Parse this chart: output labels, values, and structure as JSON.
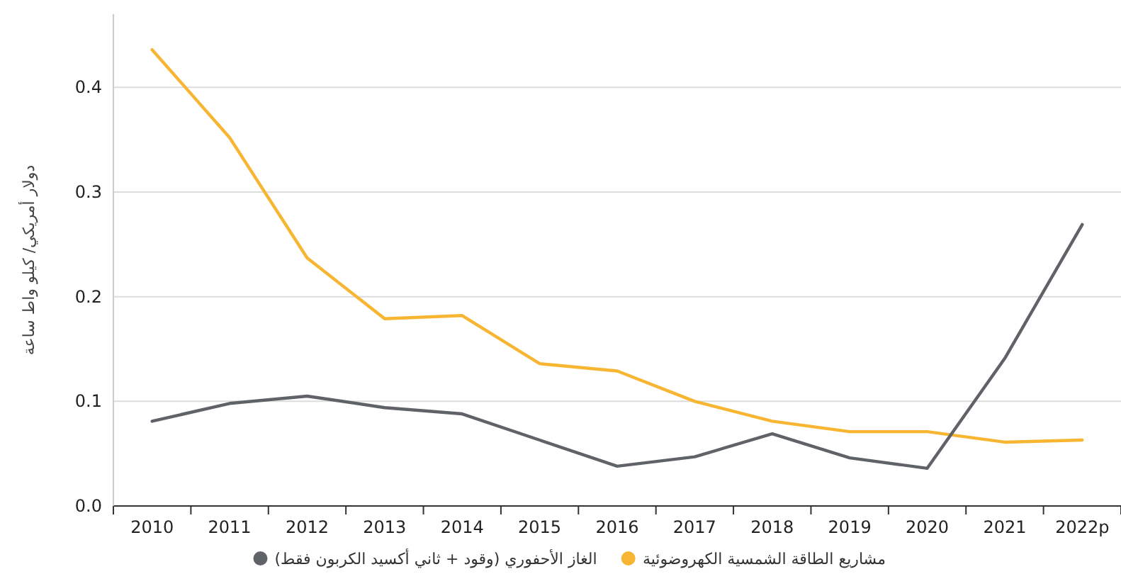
{
  "chart_data": {
    "type": "line",
    "ylabel": "دولار أمريكي/ كيلو واط ساعة",
    "categories": [
      "2010",
      "2011",
      "2012",
      "2013",
      "2014",
      "2015",
      "2016",
      "2017",
      "2018",
      "2019",
      "2020",
      "2021",
      "2022p"
    ],
    "series": [
      {
        "name": "مشاريع الطاقة الشمسية الكهروضوئية",
        "color": "#f7b531",
        "values": [
          0.436,
          0.352,
          0.237,
          0.179,
          0.182,
          0.136,
          0.129,
          0.1,
          0.081,
          0.071,
          0.071,
          0.061,
          0.063
        ]
      },
      {
        "name": "الغاز الأحفوري (وقود + ثاني أكسيد الكربون فقط)",
        "color": "#5f6368",
        "values": [
          0.081,
          0.098,
          0.105,
          0.094,
          0.088,
          0.063,
          0.038,
          0.047,
          0.069,
          0.046,
          0.036,
          0.141,
          0.269
        ]
      }
    ],
    "ylim": [
      0,
      0.47
    ],
    "yticks": [
      {
        "value": 0,
        "label": "0.0"
      },
      {
        "value": 0.1,
        "label": "0.1"
      },
      {
        "value": 0.2,
        "label": "0.2"
      },
      {
        "value": 0.3,
        "label": "0.3"
      },
      {
        "value": 0.4,
        "label": "0.4"
      }
    ],
    "grid": "y",
    "legend": "bottom",
    "marker": "none",
    "line_style": "solid"
  }
}
